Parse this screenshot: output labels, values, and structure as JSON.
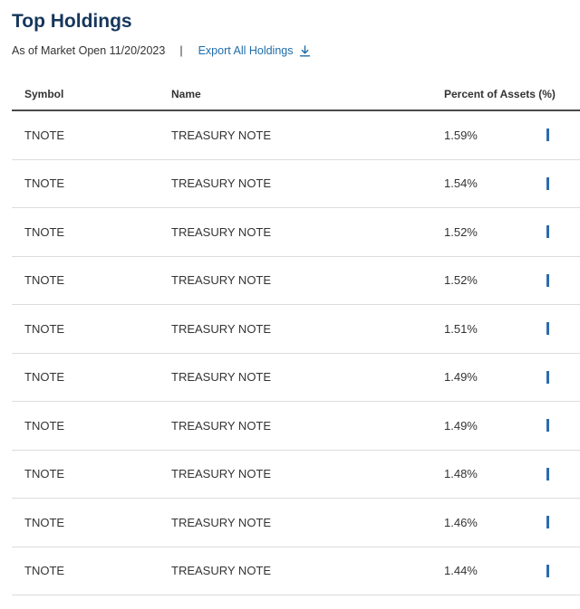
{
  "header": {
    "title": "Top Holdings",
    "as_of": "As of Market Open 11/20/2023",
    "divider": "|",
    "export_label": "Export All Holdings",
    "export_icon": "download-icon"
  },
  "table": {
    "columns": [
      "Symbol",
      "Name",
      "Percent of Assets (%)"
    ],
    "rows": [
      {
        "symbol": "TNOTE",
        "name": "TREASURY NOTE",
        "percent": "1.59%",
        "value": 1.59
      },
      {
        "symbol": "TNOTE",
        "name": "TREASURY NOTE",
        "percent": "1.54%",
        "value": 1.54
      },
      {
        "symbol": "TNOTE",
        "name": "TREASURY NOTE",
        "percent": "1.52%",
        "value": 1.52
      },
      {
        "symbol": "TNOTE",
        "name": "TREASURY NOTE",
        "percent": "1.52%",
        "value": 1.52
      },
      {
        "symbol": "TNOTE",
        "name": "TREASURY NOTE",
        "percent": "1.51%",
        "value": 1.51
      },
      {
        "symbol": "TNOTE",
        "name": "TREASURY NOTE",
        "percent": "1.49%",
        "value": 1.49
      },
      {
        "symbol": "TNOTE",
        "name": "TREASURY NOTE",
        "percent": "1.49%",
        "value": 1.49
      },
      {
        "symbol": "TNOTE",
        "name": "TREASURY NOTE",
        "percent": "1.48%",
        "value": 1.48
      },
      {
        "symbol": "TNOTE",
        "name": "TREASURY NOTE",
        "percent": "1.46%",
        "value": 1.46
      },
      {
        "symbol": "TNOTE",
        "name": "TREASURY NOTE",
        "percent": "1.44%",
        "value": 1.44
      }
    ]
  },
  "colors": {
    "title": "#16365c",
    "link": "#1f6ca8",
    "bar": "#2d6cb0"
  }
}
